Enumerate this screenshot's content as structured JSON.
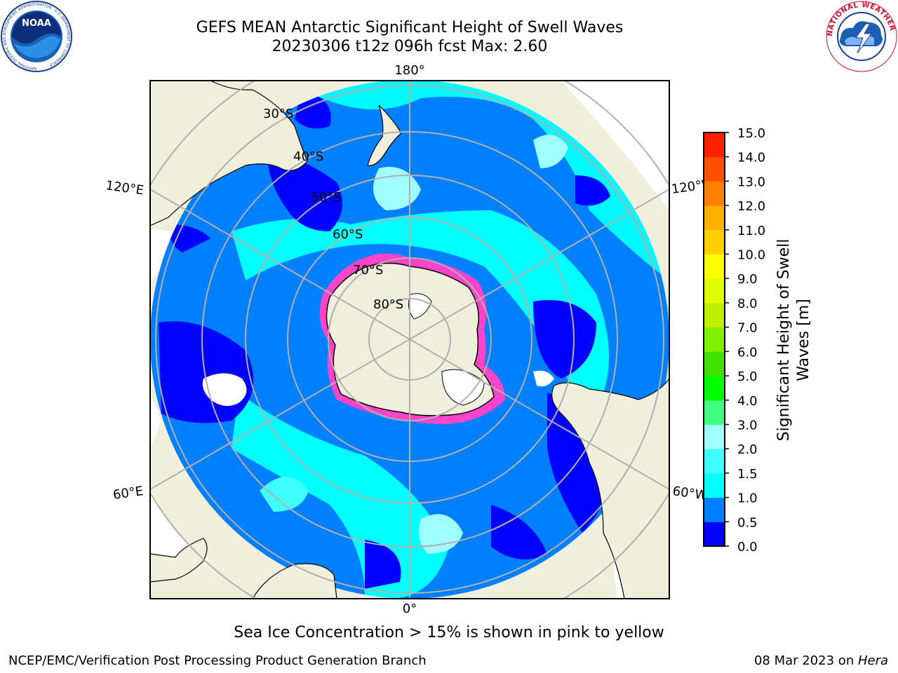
{
  "header": {
    "title_line1": "GEFS MEAN Antarctic Significant Height of Swell Waves",
    "title_line2": "20230306 t12z 096h fcst   Max: 2.60"
  },
  "logos": {
    "noaa": "NOAA",
    "noaa_ring": "NATIONAL OCEANIC AND ATMOSPHERIC ADMINISTRATION · U.S. DEPARTMENT OF COMMERCE",
    "nws_ring": "NATIONAL WEATHER SERVICE"
  },
  "map": {
    "longitude_labels": {
      "top": "180°",
      "bottom": "0°",
      "left_upper": "120°E",
      "left_lower": "60°E",
      "right_upper": "120°W",
      "right_lower": "60°W"
    },
    "latitude_labels": [
      "30°S",
      "40°S",
      "50°S",
      "60°S",
      "70°S",
      "80°S"
    ],
    "colors": {
      "land": "#efefdc",
      "ocean_deep": "#0000ff",
      "ocean_blue": "#0080ff",
      "ocean_cyan": "#00ffff",
      "ocean_light": "#80ffff",
      "ice_edge": "#ff44cc"
    }
  },
  "colorbar": {
    "title_line1": "Significant Height of Swell",
    "title_line2": "Waves [m]",
    "ticks": [
      "0.0",
      "0.5",
      "1.0",
      "1.5",
      "2.0",
      "3.0",
      "4.0",
      "5.0",
      "6.0",
      "7.0",
      "8.0",
      "9.0",
      "10.0",
      "11.0",
      "12.0",
      "13.0",
      "14.0",
      "15.0"
    ],
    "colors": [
      "#0000ff",
      "#0080ff",
      "#00ffff",
      "#40ffff",
      "#a0ffff",
      "#40ff80",
      "#00ff00",
      "#40e000",
      "#80f000",
      "#c0f000",
      "#e0ff00",
      "#ffff00",
      "#ffd000",
      "#ffb000",
      "#ff8000",
      "#ff5000",
      "#ff2000"
    ]
  },
  "notes": {
    "ice": "Sea Ice Concentration > 15% is shown in pink to yellow",
    "footer_left": "NCEP/EMC/Verification Post Processing Product Generation Branch",
    "footer_date": "08 Mar 2023 on ",
    "footer_machine": "Hera"
  }
}
